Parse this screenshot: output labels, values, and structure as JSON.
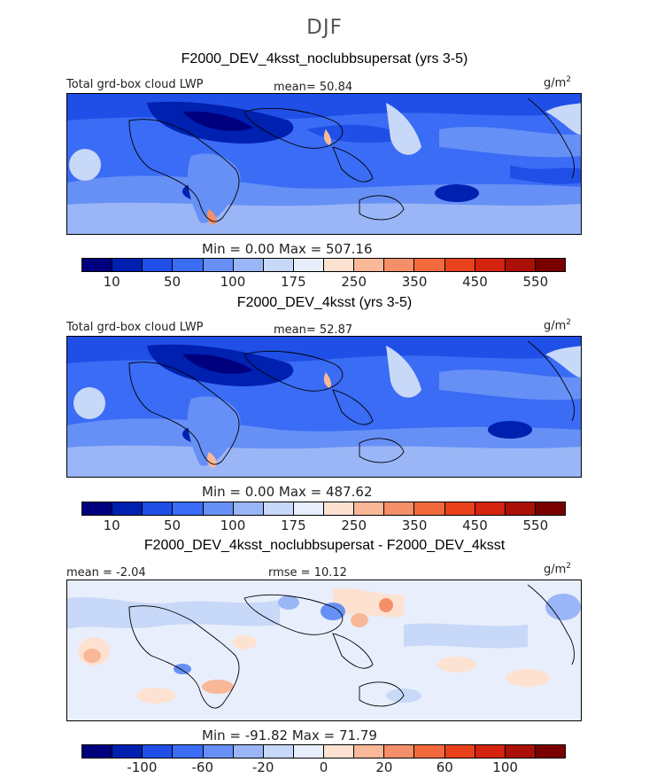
{
  "season": "DJF",
  "colors": [
    "#00007f",
    "#0020b0",
    "#1f4fe6",
    "#3a6cf5",
    "#6690f5",
    "#9ab6f7",
    "#c8d8f8",
    "#e8eefc",
    "#fde2d2",
    "#f9b898",
    "#f58f6a",
    "#f26a3c",
    "#e8411c",
    "#d42410",
    "#aa1008",
    "#7a0000"
  ],
  "panels": [
    {
      "title": "F2000_DEV_4ksst_noclubbsupersat (yrs 3-5)",
      "left_label": "Total grd-box cloud LWP",
      "stat_label": "mean=  50.84",
      "units": "g/m",
      "units_sup": "2",
      "minmax": "Min =    0.00  Max = 507.16",
      "ticks": [
        "10",
        "50",
        "100",
        "175",
        "250",
        "350",
        "450",
        "550"
      ]
    },
    {
      "title": "F2000_DEV_4ksst (yrs 3-5)",
      "left_label": "Total grd-box cloud LWP",
      "stat_label": "mean=  52.87",
      "units": "g/m",
      "units_sup": "2",
      "minmax": "Min =    0.00  Max = 487.62",
      "ticks": [
        "10",
        "50",
        "100",
        "175",
        "250",
        "350",
        "450",
        "550"
      ]
    },
    {
      "title": "F2000_DEV_4ksst_noclubbsupersat - F2000_DEV_4ksst",
      "left_label": "mean =  -2.04",
      "stat_label": "rmse =  10.12",
      "units": "g/m",
      "units_sup": "2",
      "minmax": "Min = -91.82  Max =  71.79",
      "ticks": [
        "-100",
        "-60",
        "-20",
        "0",
        "20",
        "60",
        "100"
      ]
    }
  ]
}
